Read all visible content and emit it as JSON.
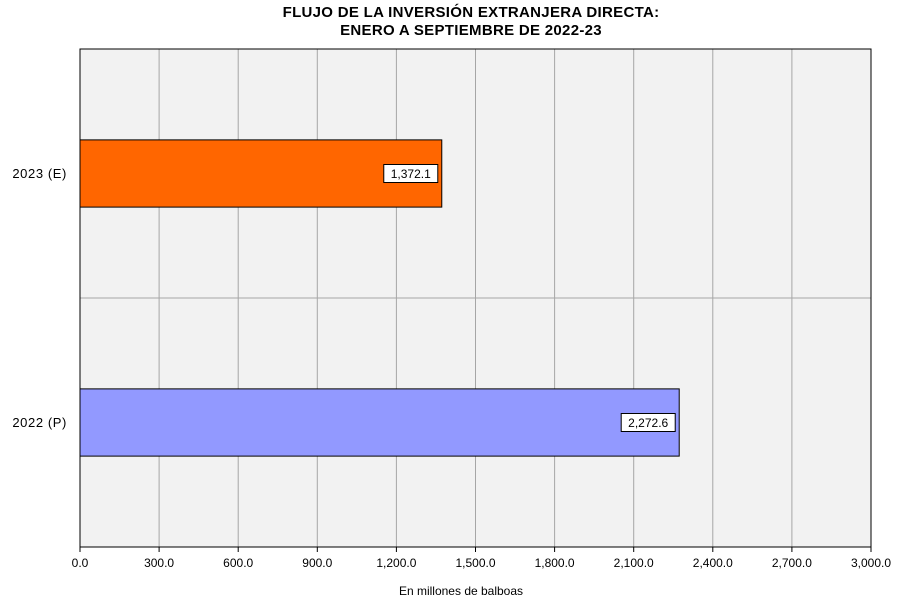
{
  "chart_data": {
    "type": "bar",
    "orientation": "horizontal",
    "title": [
      "FLUJO DE LA INVERSIÓN EXTRANJERA DIRECTA:",
      "ENERO A SEPTIEMBRE DE 2022-23"
    ],
    "xlabel": "En millones de balboas",
    "ylabel": "",
    "xlim": [
      0,
      3000
    ],
    "x_ticks": [
      0,
      300,
      600,
      900,
      1200,
      1500,
      1800,
      2100,
      2400,
      2700,
      3000
    ],
    "x_tick_labels": [
      "0.0",
      "300.0",
      "600.0",
      "900.0",
      "1,200.0",
      "1,500.0",
      "1,800.0",
      "2,100.0",
      "2,400.0",
      "2,700.0",
      "3,000.0"
    ],
    "categories": [
      "2023 (E)",
      "2022 (P)"
    ],
    "values": [
      1372.1,
      2272.6
    ],
    "data_labels": [
      "1,372.1",
      "2,272.6"
    ],
    "colors": [
      "#ff6600",
      "#9299ff"
    ],
    "plot_background": "#f2f2f2",
    "grid": true,
    "legend": "none"
  }
}
